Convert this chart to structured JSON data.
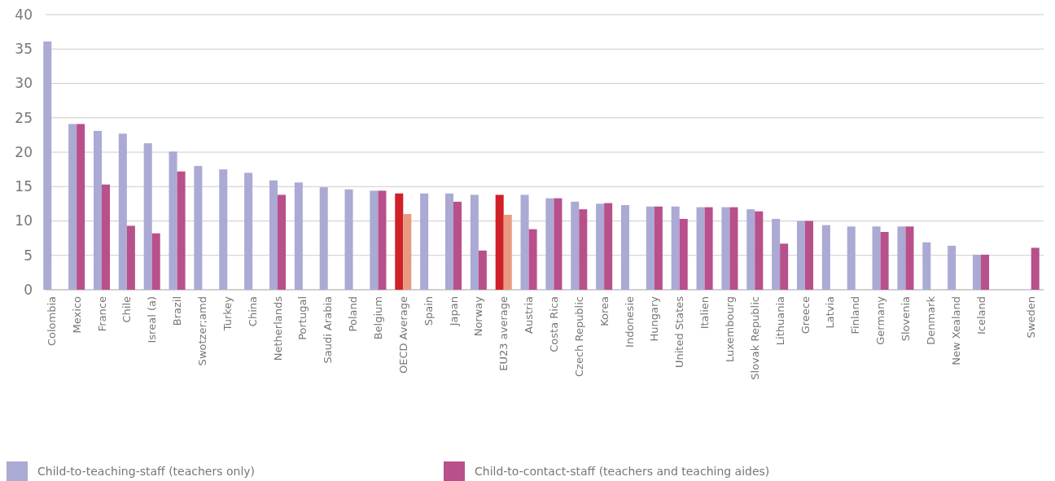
{
  "chart_data": {
    "type": "bar",
    "categories": [
      "Colombia",
      "Mexico",
      "France",
      "Chile",
      "Isreal (a)",
      "Brazil",
      "Swotzer;amd",
      "Turkey",
      "China",
      "Netherlands",
      "Portugal",
      "Saudi Arabia",
      "Poland",
      "Belgium",
      "OECD Average",
      "Spain",
      "Japan",
      "Norway",
      "EU23 average",
      "Austria",
      "Costa Rica",
      "Czech Republic",
      "Korea",
      "Indonesie",
      "Hungary",
      "United States",
      "Italien",
      "Luxembourg",
      "Slovak Republic",
      "Lithuania",
      "Greece",
      "Latvia",
      "Finland",
      "Germany",
      "Slovenia",
      "Denmark",
      "New Xealand",
      "Iceland",
      null,
      "Sweden"
    ],
    "series": [
      {
        "name": "Child-to-teaching-staff (teachers only)",
        "color": "#aaaad4",
        "colors": [
          "#aaaad4",
          "#aaaad4",
          "#aaaad4",
          "#aaaad4",
          "#aaaad4",
          "#aaaad4",
          "#aaaad4",
          "#aaaad4",
          "#aaaad4",
          "#aaaad4",
          "#aaaad4",
          "#aaaad4",
          "#aaaad4",
          "#aaaad4",
          "#d02028",
          "#aaaad4",
          "#aaaad4",
          "#aaaad4",
          "#d02028",
          "#aaaad4",
          "#aaaad4",
          "#aaaad4",
          "#aaaad4",
          "#aaaad4",
          "#aaaad4",
          "#aaaad4",
          "#aaaad4",
          "#aaaad4",
          "#aaaad4",
          "#aaaad4",
          "#aaaad4",
          "#aaaad4",
          "#aaaad4",
          "#aaaad4",
          "#aaaad4",
          "#aaaad4",
          "#aaaad4",
          "#aaaad4",
          "#aaaad4",
          "#aaaad4"
        ],
        "values": [
          36.1,
          24.1,
          23.1,
          22.7,
          21.3,
          20.1,
          18.0,
          17.5,
          17.0,
          15.9,
          15.6,
          14.9,
          14.6,
          14.4,
          14.0,
          14.0,
          14.0,
          13.8,
          13.8,
          13.8,
          13.3,
          12.8,
          12.5,
          12.3,
          12.1,
          12.1,
          12.0,
          12.0,
          11.7,
          10.3,
          10.0,
          9.4,
          9.2,
          9.2,
          9.2,
          6.9,
          6.4,
          5.1,
          null,
          null
        ]
      },
      {
        "name": "Child-to-contact-staff (teachers and teaching aides)",
        "color": "#b8508c",
        "colors": [
          "#b8508c",
          "#b8508c",
          "#b8508c",
          "#b8508c",
          "#b8508c",
          "#b8508c",
          "#b8508c",
          "#b8508c",
          "#b8508c",
          "#b8508c",
          "#b8508c",
          "#b8508c",
          "#b8508c",
          "#b8508c",
          "#e89a80",
          "#b8508c",
          "#b8508c",
          "#b8508c",
          "#e89a80",
          "#b8508c",
          "#b8508c",
          "#b8508c",
          "#b8508c",
          "#b8508c",
          "#b8508c",
          "#b8508c",
          "#b8508c",
          "#b8508c",
          "#b8508c",
          "#b8508c",
          "#b8508c",
          "#b8508c",
          "#b8508c",
          "#b8508c",
          "#b8508c",
          "#b8508c",
          "#b8508c",
          "#b8508c",
          "#b8508c",
          "#b8508c"
        ],
        "values": [
          null,
          24.1,
          15.3,
          9.3,
          8.2,
          17.2,
          null,
          null,
          null,
          13.8,
          null,
          null,
          null,
          14.4,
          11.0,
          null,
          12.8,
          5.7,
          10.9,
          8.8,
          13.3,
          11.7,
          12.6,
          null,
          12.1,
          10.3,
          12.0,
          12.0,
          11.4,
          6.7,
          10.0,
          null,
          null,
          8.4,
          9.2,
          null,
          null,
          5.1,
          null,
          6.1
        ]
      }
    ],
    "ylim": [
      0,
      40
    ],
    "yticks": [
      0,
      5,
      10,
      15,
      20,
      25,
      30,
      35,
      40
    ],
    "grid": "y",
    "legend": "bottom"
  }
}
